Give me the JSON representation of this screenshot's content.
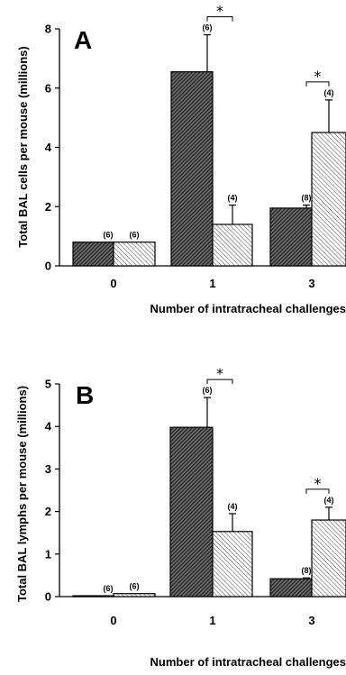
{
  "chart_data": [
    {
      "type": "bar",
      "panel_label": "A",
      "ylabel": "Total BAL cells per mouse (millions)",
      "xlabel": "Number of intratracheal challenges",
      "categories": [
        "0",
        "1",
        "3"
      ],
      "ylim": [
        0,
        8
      ],
      "yticks": [
        "0",
        "2",
        "4",
        "6",
        "8"
      ],
      "series": [
        {
          "values": [
            0.8,
            6.55,
            1.95
          ],
          "errors": [
            0,
            1.25,
            0.1
          ],
          "n": [
            "(6)",
            "(6)",
            "(8)"
          ],
          "fill": "dark-hatch"
        },
        {
          "values": [
            0.8,
            1.4,
            4.5
          ],
          "errors": [
            0,
            0.65,
            1.1
          ],
          "n": [
            "(6)",
            "(4)",
            "(4)"
          ],
          "fill": "light-hatch"
        }
      ],
      "significance": [
        {
          "category": "1",
          "label": "*"
        },
        {
          "category": "3",
          "label": "*"
        }
      ]
    },
    {
      "type": "bar",
      "panel_label": "B",
      "ylabel": "Total BAL lymphs per mouse (millions)",
      "xlabel": "Number of intratracheal challenges",
      "categories": [
        "0",
        "1",
        "3"
      ],
      "ylim": [
        0,
        5
      ],
      "yticks": [
        "0",
        "1",
        "2",
        "3",
        "4",
        "5"
      ],
      "series": [
        {
          "values": [
            0.02,
            3.98,
            0.42
          ],
          "errors": [
            0,
            0.7,
            0.02
          ],
          "n": [
            "(6)",
            "(6)",
            "(8)"
          ],
          "fill": "dark-hatch"
        },
        {
          "values": [
            0.07,
            1.53,
            1.8
          ],
          "errors": [
            0,
            0.42,
            0.3
          ],
          "n": [
            "(6)",
            "(4)",
            "(4)"
          ],
          "fill": "light-hatch"
        }
      ],
      "significance": [
        {
          "category": "1",
          "label": "*"
        },
        {
          "category": "3",
          "label": "*"
        }
      ]
    }
  ]
}
